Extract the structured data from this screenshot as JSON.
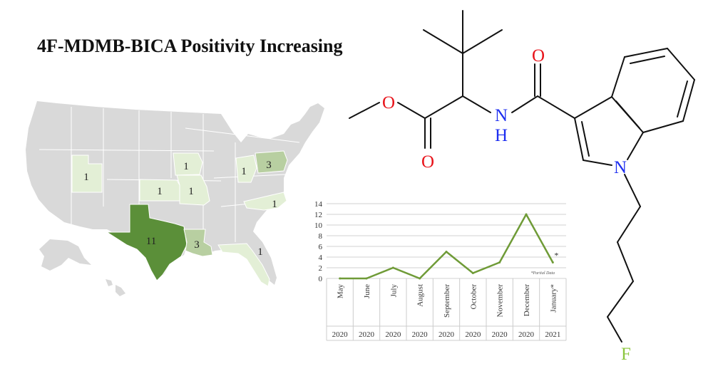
{
  "title": "4F-MDMB-BICA Positivity Increasing",
  "colors": {
    "state_gray": "#d9d9d9",
    "level_1": "#e3efd6",
    "level_3": "#b8cfa1",
    "level_11": "#5b8f39",
    "line": "#6f9b37",
    "oxygen": "#e8141b",
    "nitrogen": "#1d2ef0",
    "fluorine": "#8cc63f"
  },
  "map": {
    "state_counts": [
      {
        "state": "UT",
        "count": "1"
      },
      {
        "state": "IA",
        "count": "1"
      },
      {
        "state": "KS",
        "count": "1"
      },
      {
        "state": "MO",
        "count": "1"
      },
      {
        "state": "OH",
        "count": "1"
      },
      {
        "state": "PA",
        "count": "3"
      },
      {
        "state": "NC",
        "count": "1"
      },
      {
        "state": "TX",
        "count": "11"
      },
      {
        "state": "LA",
        "count": "3"
      },
      {
        "state": "FL",
        "count": "1"
      }
    ]
  },
  "molecule": {
    "atoms": {
      "o_top": "O",
      "o_ester": "O",
      "o_bottom": "O",
      "n_amide": "N",
      "h_amide": "H",
      "n_indole": "N",
      "f": "F"
    }
  },
  "chart_data": {
    "type": "line",
    "categories": [
      "May",
      "June",
      "July",
      "August",
      "September",
      "October",
      "November",
      "December",
      "January*"
    ],
    "years": [
      "2020",
      "2020",
      "2020",
      "2020",
      "2020",
      "2020",
      "2020",
      "2020",
      "2021"
    ],
    "values": [
      0,
      0,
      2,
      0,
      5,
      1,
      3,
      12,
      3
    ],
    "ylim": [
      0,
      14
    ],
    "yticks": [
      "0",
      "2",
      "4",
      "6",
      "8",
      "10",
      "12",
      "14"
    ],
    "grid": true,
    "last_point_label": "*",
    "note": "*Partial Data"
  }
}
